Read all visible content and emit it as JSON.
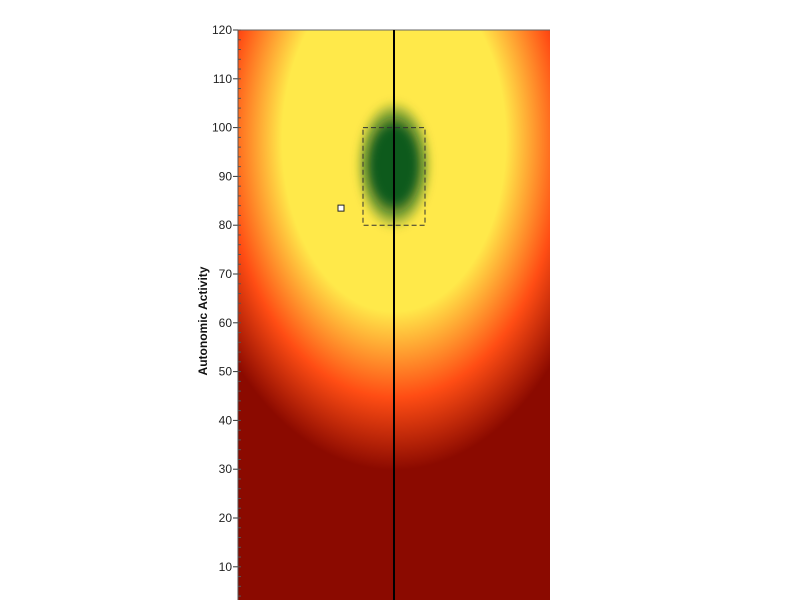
{
  "chart_data": {
    "type": "heatmap",
    "title": "",
    "ylabel": "Autonomic Activity",
    "xlabel": "",
    "ylim": [
      0,
      120
    ],
    "yticks": [
      10,
      20,
      30,
      40,
      50,
      60,
      70,
      80,
      90,
      100,
      110,
      120
    ],
    "ytick_labels": [
      "10",
      "20",
      "30",
      "40",
      "50",
      "60",
      "70",
      "80",
      "90",
      "100",
      "110",
      "120"
    ],
    "y_minor_step": 2,
    "grid": false,
    "colors": {
      "low": "#8b0a00",
      "mid_low": "#ff4d14",
      "mid_high": "#ffe94a",
      "high": "#0b5a1c",
      "reference_line": "#000000"
    },
    "optimal_zone": {
      "y_range": [
        80,
        100
      ],
      "style": "dashed"
    },
    "marker": {
      "y": 83.5,
      "shape": "square"
    }
  }
}
